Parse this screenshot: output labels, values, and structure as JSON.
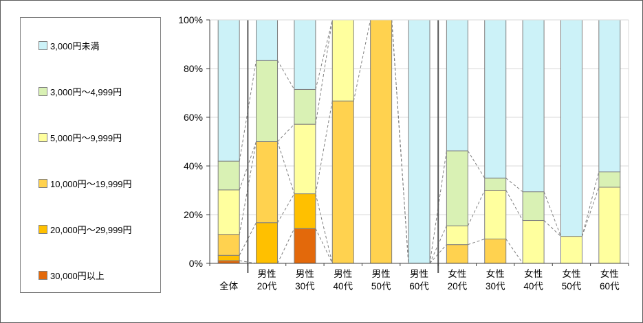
{
  "chart_data": {
    "type": "bar",
    "variant": "100% stacked column with series lines",
    "title": "",
    "xlabel": "",
    "ylabel": "",
    "ylim": [
      0,
      100
    ],
    "yticks": [
      0,
      20,
      40,
      60,
      80,
      100
    ],
    "ytick_suffix": "%",
    "grid": true,
    "legend_position": "left",
    "separators_after_category_index": [
      0,
      5
    ],
    "categories": [
      "全体",
      "男性20代",
      "男性30代",
      "男性40代",
      "男性50代",
      "男性60代",
      "女性20代",
      "女性30代",
      "女性40代",
      "女性50代",
      "女性60代"
    ],
    "category_label_lines": [
      [
        "全体"
      ],
      [
        "男性",
        "20代"
      ],
      [
        "男性",
        "30代"
      ],
      [
        "男性",
        "40代"
      ],
      [
        "男性",
        "50代"
      ],
      [
        "男性",
        "60代"
      ],
      [
        "女性",
        "20代"
      ],
      [
        "女性",
        "30代"
      ],
      [
        "女性",
        "40代"
      ],
      [
        "女性",
        "50代"
      ],
      [
        "女性",
        "60代"
      ]
    ],
    "series": [
      {
        "name": "3,000円未満",
        "color": "#CCF2F8",
        "values": [
          58.1,
          16.7,
          28.6,
          0,
          0,
          100,
          53.8,
          65,
          70.6,
          88.9,
          62.5
        ]
      },
      {
        "name": "3,000円〜4,999円",
        "color": "#D9F1B4",
        "values": [
          11.8,
          33.3,
          14.3,
          0,
          0,
          0,
          30.8,
          5,
          11.8,
          0,
          6.3
        ]
      },
      {
        "name": "5,000円〜9,999円",
        "color": "#FFFF9E",
        "values": [
          18.3,
          0,
          28.6,
          33.3,
          0,
          0,
          7.7,
          20,
          17.6,
          11.1,
          31.3
        ]
      },
      {
        "name": "10,000円〜19,999円",
        "color": "#FFD24F",
        "values": [
          8.6,
          33.3,
          0,
          66.7,
          100,
          0,
          7.7,
          10,
          0,
          0,
          0
        ]
      },
      {
        "name": "20,000円〜29,999円",
        "color": "#FFC000",
        "values": [
          2.2,
          16.7,
          14.3,
          0,
          0,
          0,
          0,
          0,
          0,
          0,
          0
        ]
      },
      {
        "name": "30,000円以上",
        "color": "#E3690B",
        "values": [
          1.1,
          0,
          14.3,
          0,
          0,
          0,
          0,
          0,
          0,
          0,
          0
        ]
      }
    ],
    "stacking_note": "last listed series is at the bottom of each column",
    "colors": {
      "axis": "#404040",
      "gridline": "#D9D9D9",
      "segment_border": "#7F7F7F",
      "series_line": "#808080",
      "group_separator": "#595959"
    }
  },
  "legend": {
    "items": [
      {
        "label": "3,000円未満",
        "color": "#CCF2F8"
      },
      {
        "label": "3,000円〜4,999円",
        "color": "#D9F1B4"
      },
      {
        "label": "5,000円〜9,999円",
        "color": "#FFFF9E"
      },
      {
        "label": "10,000円〜19,999円",
        "color": "#FFD24F"
      },
      {
        "label": "20,000円〜29,999円",
        "color": "#FFC000"
      },
      {
        "label": "30,000円以上",
        "color": "#E3690B"
      }
    ]
  }
}
